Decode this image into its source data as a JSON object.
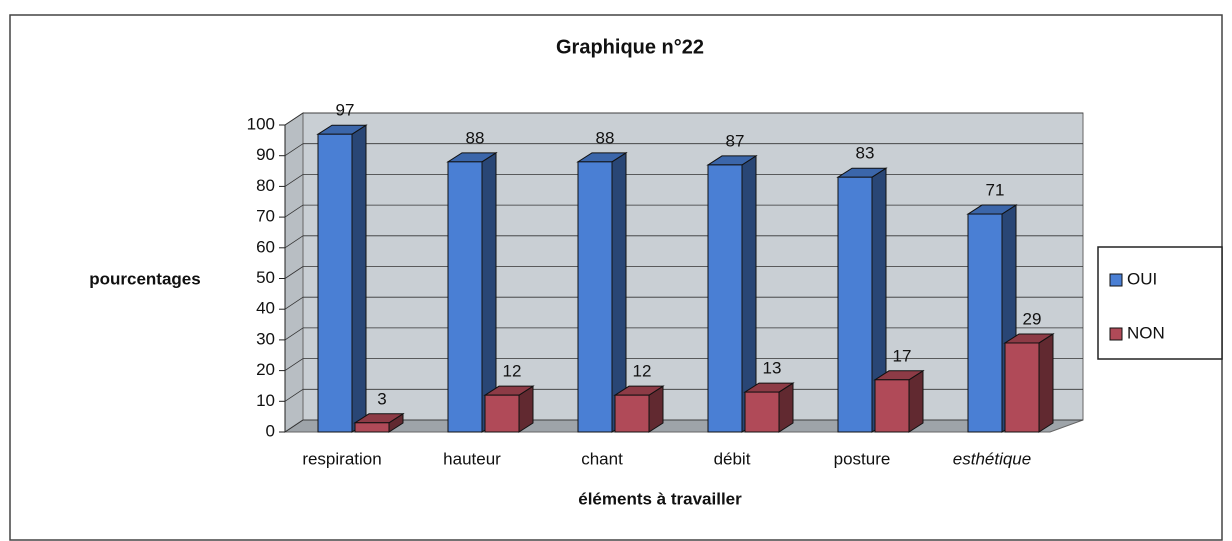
{
  "chart_data": {
    "type": "bar3d",
    "title": "Graphique n°22",
    "y_label": "pourcentages",
    "x_label": "éléments à travailler",
    "categories": [
      "respiration",
      "hauteur",
      "chant",
      "débit",
      "posture",
      "esthétique"
    ],
    "series": [
      {
        "name": "OUI",
        "color": "#4a7fd4",
        "values": [
          97,
          88,
          88,
          87,
          83,
          71
        ]
      },
      {
        "name": "NON",
        "color": "#b04a58",
        "values": [
          3,
          12,
          12,
          13,
          17,
          29
        ]
      }
    ],
    "ylim": [
      0,
      100
    ],
    "yticks": [
      0,
      10,
      20,
      30,
      40,
      50,
      60,
      70,
      80,
      90,
      100
    ],
    "grid": true,
    "legend": "right"
  }
}
